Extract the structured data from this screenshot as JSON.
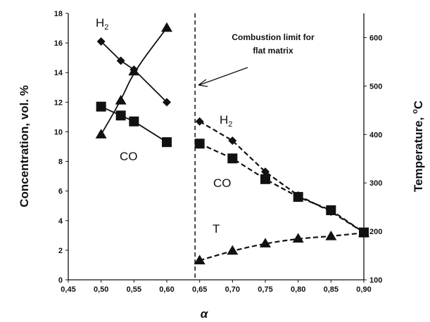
{
  "chart_data": {
    "type": "scatter",
    "xlabel": "α",
    "ylabel": "Concentration, vol. %",
    "y2label": "Temperature, ",
    "y2label_sup": "o",
    "y2label_unit": "C",
    "xlim": [
      0.45,
      0.9
    ],
    "ylim": [
      0,
      18
    ],
    "y2lim": [
      100,
      650
    ],
    "x_ticks": [
      "0,45",
      "0,50",
      "0,55",
      "0,60",
      "0,65",
      "0,70",
      "0,75",
      "0,80",
      "0,85",
      "0,90"
    ],
    "y_ticks": [
      "0",
      "2",
      "4",
      "6",
      "8",
      "10",
      "12",
      "14",
      "16",
      "18"
    ],
    "y2_ticks": [
      "100",
      "200",
      "300",
      "400",
      "500",
      "600"
    ],
    "series": [
      {
        "key": "h2_left",
        "marker": "diamond",
        "line": "solid",
        "axis": "left",
        "x": [
          0.5,
          0.53,
          0.55,
          0.6
        ],
        "y": [
          16.1,
          14.8,
          14.2,
          12.0
        ]
      },
      {
        "key": "co_left",
        "marker": "square",
        "line": "solid",
        "axis": "left",
        "x": [
          0.5,
          0.53,
          0.55,
          0.6
        ],
        "y": [
          11.7,
          11.1,
          10.7,
          9.3
        ]
      },
      {
        "key": "t_left",
        "marker": "triangle",
        "line": "solid",
        "axis": "right",
        "x": [
          0.5,
          0.53,
          0.55,
          0.6
        ],
        "y": [
          400,
          470,
          530,
          620
        ]
      },
      {
        "key": "h2_right",
        "marker": "diamond",
        "line": "dashed",
        "axis": "left",
        "x": [
          0.65,
          0.7,
          0.75,
          0.8,
          0.85,
          0.9
        ],
        "y": [
          10.7,
          9.4,
          7.3,
          5.7,
          4.6,
          3.2
        ]
      },
      {
        "key": "co_right",
        "marker": "square",
        "line": "dashed",
        "axis": "left",
        "x": [
          0.65,
          0.7,
          0.75,
          0.8,
          0.85,
          0.9
        ],
        "y": [
          9.2,
          8.2,
          6.8,
          5.6,
          4.7,
          3.2
        ]
      },
      {
        "key": "t_right",
        "marker": "triangle",
        "line": "dashed",
        "axis": "right",
        "x": [
          0.65,
          0.7,
          0.75,
          0.8,
          0.85,
          0.9
        ],
        "y": [
          140,
          160,
          175,
          185,
          190,
          197
        ]
      }
    ],
    "vline": {
      "x": 0.643
    },
    "annotations": {
      "h2_upper_main": "H",
      "h2_upper_sub": "2",
      "co_upper": "CO",
      "h2_lower_main": "H",
      "h2_lower_sub": "2",
      "co_lower": "CO",
      "t_lower": "T",
      "limit_line1": "Combustion limit for",
      "limit_line2": "flat matrix"
    }
  }
}
